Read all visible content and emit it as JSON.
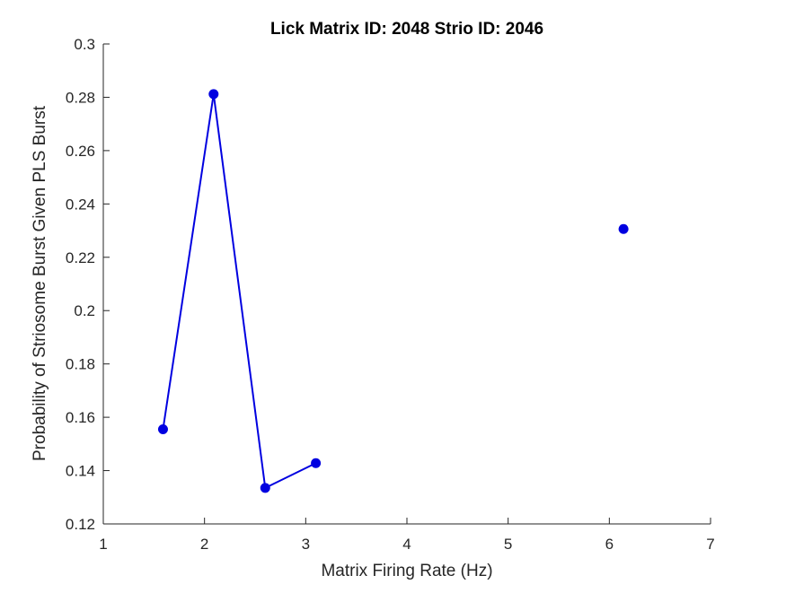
{
  "chart_data": {
    "type": "line",
    "title": "Lick Matrix ID: 2048 Strio ID: 2046",
    "xlabel": "Matrix Firing Rate (Hz)",
    "ylabel": "Probability of Striosome Burst Given PLS Burst",
    "xlim": [
      1,
      7
    ],
    "ylim": [
      0.12,
      0.3
    ],
    "xticks": [
      1,
      2,
      3,
      4,
      5,
      6,
      7
    ],
    "xtick_labels": [
      "1",
      "2",
      "3",
      "4",
      "5",
      "6",
      "7"
    ],
    "yticks": [
      0.12,
      0.14,
      0.16,
      0.18,
      0.2,
      0.22,
      0.24,
      0.26,
      0.28,
      0.3
    ],
    "ytick_labels": [
      "0.12",
      "0.14",
      "0.16",
      "0.18",
      "0.2",
      "0.22",
      "0.24",
      "0.26",
      "0.28",
      "0.3"
    ],
    "grid": false,
    "series": [
      {
        "color": "#0000e0",
        "marker": "circle",
        "points": [
          {
            "x": 1.59,
            "y": 0.1555
          },
          {
            "x": 2.09,
            "y": 0.2812
          },
          {
            "x": 2.6,
            "y": 0.1335
          },
          {
            "x": 3.1,
            "y": 0.1428
          },
          {
            "x": 6.14,
            "y": 0.2306
          }
        ],
        "segments": [
          [
            0,
            1
          ],
          [
            1,
            2
          ],
          [
            2,
            3
          ]
        ]
      }
    ]
  }
}
